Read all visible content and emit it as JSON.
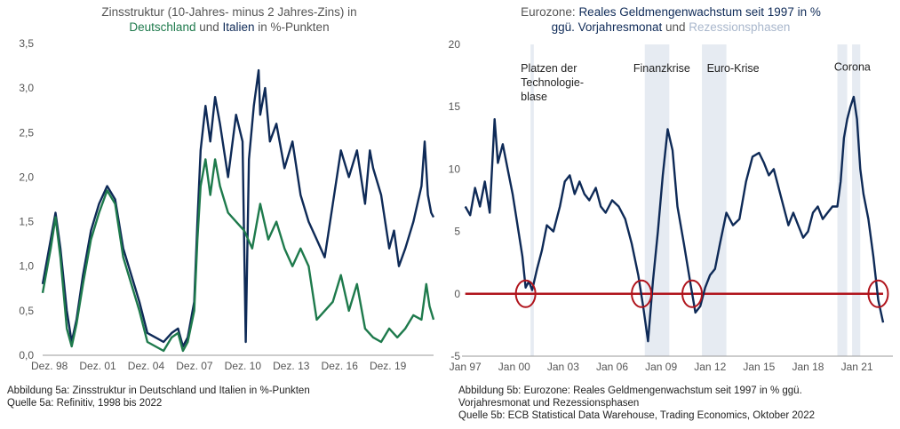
{
  "chart_data": [
    {
      "type": "line",
      "title_parts": [
        {
          "text": "Zinsstruktur (10-Jahres- minus 2 Jahres-Zins) in",
          "color": "#555555",
          "line": 0
        },
        {
          "text": "Deutschland",
          "color": "#1e7a4c",
          "line": 1
        },
        {
          "text": " und ",
          "color": "#555555",
          "line": 1
        },
        {
          "text": "Italien",
          "color": "#0e2a57",
          "line": 1
        },
        {
          "text": " in %-Punkten",
          "color": "#555555",
          "line": 1
        }
      ],
      "x_ticks": [
        "Dez. 98",
        "Dez. 01",
        "Dez. 04",
        "Dez. 07",
        "Dez. 10",
        "Dez. 13",
        "Dez. 16",
        "Dez. 19"
      ],
      "x_tick_years": [
        1998.92,
        2001.92,
        2004.92,
        2007.92,
        2010.92,
        2013.92,
        2016.92,
        2019.92
      ],
      "xlim": [
        1998.5,
        2022.75
      ],
      "y_ticks": [
        "0,0",
        "0,5",
        "1,0",
        "1,5",
        "2,0",
        "2,5",
        "3,0",
        "3,5"
      ],
      "ylim": [
        0,
        3.5
      ],
      "grid": false,
      "series": [
        {
          "color": "#0e2a57",
          "x": [
            1998.5,
            1999.0,
            1999.3,
            1999.6,
            2000.0,
            2000.3,
            2000.6,
            2001.0,
            2001.5,
            2002.0,
            2002.5,
            2003.0,
            2003.5,
            2004.0,
            2004.5,
            2005.0,
            2005.5,
            2006.0,
            2006.5,
            2006.9,
            2007.2,
            2007.5,
            2007.9,
            2008.1,
            2008.3,
            2008.6,
            2008.9,
            2009.2,
            2009.5,
            2010.0,
            2010.5,
            2010.9,
            2011.1,
            2011.3,
            2011.6,
            2011.9,
            2012.0,
            2012.3,
            2012.6,
            2013.0,
            2013.5,
            2014.0,
            2014.5,
            2015.0,
            2015.5,
            2016.0,
            2016.5,
            2017.0,
            2017.5,
            2018.0,
            2018.5,
            2018.8,
            2019.0,
            2019.5,
            2020.0,
            2020.3,
            2020.6,
            2021.0,
            2021.5,
            2022.0,
            2022.2,
            2022.4,
            2022.6,
            2022.75
          ],
          "values": [
            0.8,
            1.3,
            1.6,
            1.2,
            0.5,
            0.15,
            0.4,
            0.9,
            1.4,
            1.7,
            1.9,
            1.75,
            1.2,
            0.9,
            0.6,
            0.25,
            0.2,
            0.15,
            0.25,
            0.3,
            0.1,
            0.2,
            0.6,
            1.5,
            2.3,
            2.8,
            2.4,
            2.9,
            2.6,
            2.0,
            2.7,
            2.4,
            0.15,
            2.2,
            2.8,
            3.2,
            2.7,
            3.0,
            2.4,
            2.6,
            2.1,
            2.4,
            1.8,
            1.5,
            1.3,
            1.1,
            1.7,
            2.3,
            2.0,
            2.3,
            1.7,
            2.3,
            2.1,
            1.8,
            1.2,
            1.4,
            1.0,
            1.2,
            1.5,
            1.9,
            2.4,
            1.8,
            1.6,
            1.55
          ]
        },
        {
          "color": "#1e7a4c",
          "x": [
            1998.5,
            1999.0,
            1999.3,
            1999.6,
            2000.0,
            2000.3,
            2000.6,
            2001.0,
            2001.5,
            2002.0,
            2002.5,
            2003.0,
            2003.5,
            2004.0,
            2004.5,
            2005.0,
            2005.5,
            2006.0,
            2006.5,
            2006.9,
            2007.2,
            2007.5,
            2007.9,
            2008.1,
            2008.3,
            2008.6,
            2008.9,
            2009.2,
            2009.5,
            2010.0,
            2010.5,
            2011.0,
            2011.5,
            2012.0,
            2012.5,
            2013.0,
            2013.5,
            2014.0,
            2014.5,
            2015.0,
            2015.5,
            2016.0,
            2016.5,
            2017.0,
            2017.5,
            2018.0,
            2018.5,
            2019.0,
            2019.5,
            2020.0,
            2020.5,
            2021.0,
            2021.5,
            2022.0,
            2022.3,
            2022.5,
            2022.75
          ],
          "values": [
            0.7,
            1.2,
            1.55,
            1.1,
            0.3,
            0.1,
            0.35,
            0.8,
            1.3,
            1.6,
            1.85,
            1.7,
            1.1,
            0.8,
            0.5,
            0.15,
            0.1,
            0.05,
            0.2,
            0.25,
            0.05,
            0.15,
            0.5,
            1.3,
            1.9,
            2.2,
            1.8,
            2.2,
            1.9,
            1.6,
            1.5,
            1.4,
            1.2,
            1.7,
            1.3,
            1.5,
            1.2,
            1.0,
            1.2,
            1.0,
            0.4,
            0.5,
            0.6,
            0.9,
            0.5,
            0.8,
            0.3,
            0.2,
            0.15,
            0.3,
            0.2,
            0.3,
            0.45,
            0.4,
            0.8,
            0.55,
            0.4
          ]
        }
      ]
    },
    {
      "type": "line",
      "title_parts": [
        {
          "text": "Eurozone: ",
          "color": "#555555",
          "line": 0
        },
        {
          "text": "Reales Geldmengenwachstum seit 1997 in %",
          "color": "#0e2a57",
          "line": 0
        },
        {
          "text": "ggü. Vorjahresmonat",
          "color": "#0e2a57",
          "line": 1
        },
        {
          "text": " und ",
          "color": "#555555",
          "line": 1
        },
        {
          "text": "Rezessionsphasen",
          "color": "#a9b7cc",
          "line": 1
        }
      ],
      "x_ticks": [
        "Jan 97",
        "Jan 00",
        "Jan 03",
        "Jan 06",
        "Jan 09",
        "Jan 12",
        "Jan 15",
        "Jan 18",
        "Jan 21"
      ],
      "x_tick_years": [
        1997,
        2000,
        2003,
        2006,
        2009,
        2012,
        2015,
        2018,
        2021
      ],
      "xlim": [
        1996.8,
        2023.2
      ],
      "y_ticks": [
        "-5",
        "0",
        "5",
        "10",
        "15",
        "20"
      ],
      "ylim": [
        -5,
        20
      ],
      "grid": false,
      "recessions": [
        [
          2001.0,
          2001.2
        ],
        [
          2008.0,
          2009.5
        ],
        [
          2011.5,
          2013.0
        ],
        [
          2019.8,
          2020.4
        ],
        [
          2020.7,
          2021.2
        ]
      ],
      "annotations": [
        {
          "lines": [
            "Platzen der",
            "Technologie-",
            "blase"
          ],
          "x": 2000.4,
          "y": 17.8
        },
        {
          "lines": [
            "Finanzkrise"
          ],
          "x": 2007.3,
          "y": 17.8
        },
        {
          "lines": [
            "Euro-Krise"
          ],
          "x": 2011.8,
          "y": 17.8
        },
        {
          "lines": [
            "Corona"
          ],
          "x": 2019.6,
          "y": 17.9
        }
      ],
      "circles_at": [
        [
          2000.7,
          0
        ],
        [
          2007.8,
          0
        ],
        [
          2010.9,
          0
        ],
        [
          2022.3,
          0
        ]
      ],
      "zero_line_color": "#b0141c",
      "series": [
        {
          "color": "#0e2a57",
          "x": [
            1997.0,
            1997.3,
            1997.6,
            1997.9,
            1998.2,
            1998.5,
            1998.8,
            1999.0,
            1999.3,
            1999.6,
            1999.9,
            2000.2,
            2000.5,
            2000.7,
            2000.9,
            2001.1,
            2001.4,
            2001.7,
            2002.0,
            2002.4,
            2002.8,
            2003.1,
            2003.4,
            2003.7,
            2004.0,
            2004.3,
            2004.6,
            2005.0,
            2005.3,
            2005.6,
            2006.0,
            2006.4,
            2006.8,
            2007.2,
            2007.6,
            2007.9,
            2008.2,
            2008.5,
            2008.8,
            2009.1,
            2009.4,
            2009.7,
            2010.0,
            2010.4,
            2010.8,
            2011.1,
            2011.4,
            2011.7,
            2012.0,
            2012.3,
            2012.6,
            2013.0,
            2013.4,
            2013.8,
            2014.2,
            2014.6,
            2015.0,
            2015.3,
            2015.6,
            2015.9,
            2016.2,
            2016.5,
            2016.8,
            2017.1,
            2017.4,
            2017.7,
            2018.0,
            2018.3,
            2018.6,
            2018.9,
            2019.2,
            2019.5,
            2019.8,
            2020.0,
            2020.2,
            2020.4,
            2020.6,
            2020.8,
            2021.0,
            2021.2,
            2021.4,
            2021.7,
            2022.0,
            2022.3,
            2022.6
          ],
          "values": [
            7.0,
            6.3,
            8.5,
            7.0,
            9.0,
            6.5,
            14.0,
            10.5,
            12.0,
            10.0,
            8.0,
            5.5,
            3.0,
            0.5,
            1.0,
            0.3,
            2.0,
            3.5,
            5.5,
            5.0,
            7.0,
            9.0,
            9.5,
            8.0,
            9.0,
            8.0,
            7.5,
            8.5,
            7.0,
            6.5,
            7.5,
            7.0,
            6.0,
            4.0,
            1.5,
            -1.0,
            -3.8,
            1.0,
            5.0,
            9.5,
            13.2,
            11.5,
            7.0,
            4.0,
            0.8,
            -1.5,
            -1.0,
            0.5,
            1.5,
            2.0,
            4.0,
            6.5,
            5.5,
            6.0,
            9.0,
            11.0,
            11.3,
            10.5,
            9.5,
            10.0,
            8.5,
            7.0,
            5.5,
            6.5,
            5.5,
            4.5,
            5.0,
            6.5,
            7.0,
            6.0,
            6.5,
            7.0,
            7.0,
            9.0,
            12.5,
            14.0,
            15.0,
            15.8,
            14.0,
            10.0,
            8.0,
            6.0,
            3.0,
            -0.5,
            -2.3
          ]
        }
      ]
    }
  ],
  "captions": {
    "a": [
      "Abbildung 5a: Zinsstruktur in Deutschland und Italien in %-Punkten",
      "Quelle 5a: Refinitiv, 1998 bis 2022"
    ],
    "b": [
      "Abbildung 5b: Eurozone: Reales Geldmengenwachstum seit 1997 in % ggü.",
      "Vorjahresmonat und Rezessionsphasen",
      "Quelle 5b: ECB Statistical Data Warehouse, Trading Economics, Oktober 2022"
    ]
  }
}
